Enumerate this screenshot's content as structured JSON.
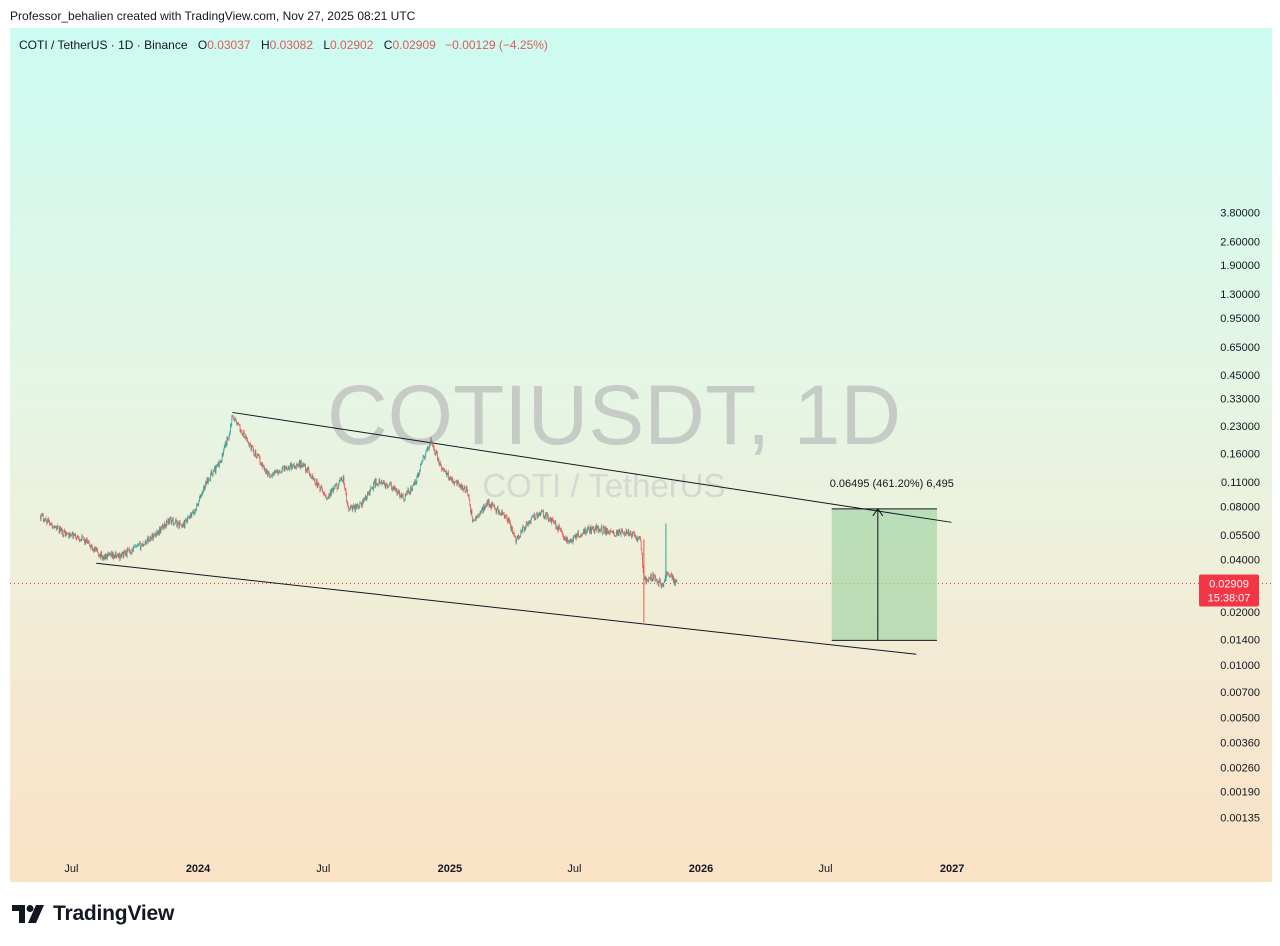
{
  "header": {
    "credit": "Professor_behalien created with TradingView.com, Nov 27, 2025 08:21 UTC"
  },
  "legend": {
    "symbol": "COTI / TetherUS · 1D · Binance",
    "o_label": "O",
    "o_value": "0.03037",
    "h_label": "H",
    "h_value": "0.03082",
    "l_label": "L",
    "l_value": "0.02902",
    "c_label": "C",
    "c_value": "0.02909",
    "change": "−0.00129 (−4.25%)"
  },
  "watermark": {
    "main": "COTIUSDT, 1D",
    "sub": "COTI / TetherUS"
  },
  "price_axis": {
    "labels": [
      "3.80000",
      "2.60000",
      "1.90000",
      "1.30000",
      "0.95000",
      "0.65000",
      "0.45000",
      "0.33000",
      "0.23000",
      "0.16000",
      "0.11000",
      "0.08000",
      "0.05500",
      "0.04000",
      "0.02000",
      "0.01400",
      "0.01000",
      "0.00700",
      "0.00500",
      "0.00360",
      "0.00260",
      "0.00190",
      "0.00135"
    ],
    "current_price": "0.02909",
    "countdown": "15:38:07"
  },
  "time_axis": {
    "labels": [
      "Jul",
      "2024",
      "Jul",
      "2025",
      "Jul",
      "2026",
      "Jul",
      "2027"
    ]
  },
  "measure": {
    "label": "0.06495 (461.20%) 6,495"
  },
  "brand": {
    "name": "TradingView"
  },
  "colors": {
    "up": "#26a69a",
    "down": "#ef5350",
    "trendline": "#131722",
    "projection_fill": "#a5d6a7",
    "price_tag": "#f23645"
  },
  "chart_data": {
    "type": "candlestick",
    "symbol": "COTI / TetherUS",
    "interval": "1D",
    "exchange": "Binance",
    "y_scale": "log",
    "ylim": [
      0.00135,
      3.8
    ],
    "last": {
      "open": 0.03037,
      "high": 0.03082,
      "low": 0.02902,
      "close": 0.02909,
      "change": -0.00129,
      "change_pct": -4.25
    },
    "price_path": [
      [
        "2023-05-17",
        0.071
      ],
      [
        "2023-06-10",
        0.06
      ],
      [
        "2023-06-26",
        0.055
      ],
      [
        "2023-07-15",
        0.053
      ],
      [
        "2023-08-16",
        0.041
      ],
      [
        "2023-09-10",
        0.042
      ],
      [
        "2023-10-10",
        0.048
      ],
      [
        "2023-11-05",
        0.058
      ],
      [
        "2023-11-20",
        0.067
      ],
      [
        "2023-12-10",
        0.062
      ],
      [
        "2023-12-27",
        0.075
      ],
      [
        "2024-01-15",
        0.115
      ],
      [
        "2024-02-01",
        0.14
      ],
      [
        "2024-02-14",
        0.2
      ],
      [
        "2024-02-20",
        0.265
      ],
      [
        "2024-03-05",
        0.21
      ],
      [
        "2024-03-20",
        0.17
      ],
      [
        "2024-04-13",
        0.12
      ],
      [
        "2024-05-10",
        0.135
      ],
      [
        "2024-06-01",
        0.14
      ],
      [
        "2024-06-20",
        0.11
      ],
      [
        "2024-07-06",
        0.09
      ],
      [
        "2024-07-30",
        0.115
      ],
      [
        "2024-08-06",
        0.077
      ],
      [
        "2024-08-25",
        0.082
      ],
      [
        "2024-09-15",
        0.11
      ],
      [
        "2024-10-05",
        0.105
      ],
      [
        "2024-10-25",
        0.09
      ],
      [
        "2024-11-10",
        0.105
      ],
      [
        "2024-11-25",
        0.155
      ],
      [
        "2024-12-05",
        0.19
      ],
      [
        "2024-12-20",
        0.13
      ],
      [
        "2025-01-10",
        0.11
      ],
      [
        "2025-01-25",
        0.1
      ],
      [
        "2025-02-04",
        0.065
      ],
      [
        "2025-02-25",
        0.085
      ],
      [
        "2025-03-25",
        0.068
      ],
      [
        "2025-04-07",
        0.052
      ],
      [
        "2025-04-25",
        0.065
      ],
      [
        "2025-05-12",
        0.075
      ],
      [
        "2025-06-01",
        0.065
      ],
      [
        "2025-06-22",
        0.05
      ],
      [
        "2025-07-15",
        0.058
      ],
      [
        "2025-08-05",
        0.06
      ],
      [
        "2025-08-25",
        0.056
      ],
      [
        "2025-09-15",
        0.057
      ],
      [
        "2025-10-05",
        0.052
      ],
      [
        "2025-10-10",
        0.03
      ],
      [
        "2025-10-25",
        0.032
      ],
      [
        "2025-11-06",
        0.028
      ],
      [
        "2025-11-12",
        0.034
      ],
      [
        "2025-11-27",
        0.02909
      ]
    ],
    "spikes": [
      {
        "date": "2025-10-10",
        "high": 0.052,
        "low": 0.0175
      },
      {
        "date": "2025-11-11",
        "high": 0.064,
        "low": 0.03
      }
    ],
    "channel": {
      "upper": {
        "from": [
          "2024-02-20",
          0.275
        ],
        "to": [
          "2026-12-31",
          0.065
        ]
      },
      "lower": {
        "from": [
          "2023-08-06",
          0.038
        ],
        "to": [
          "2026-11-10",
          0.0115
        ]
      }
    },
    "projection": {
      "from_date": "2026-07-10",
      "to_date": "2026-12-10",
      "low": 0.0138,
      "high": 0.0775,
      "arrow_date": "2026-09-15",
      "label": "0.06495 (461.20%) 6,495"
    },
    "current_price_line": 0.02909
  }
}
